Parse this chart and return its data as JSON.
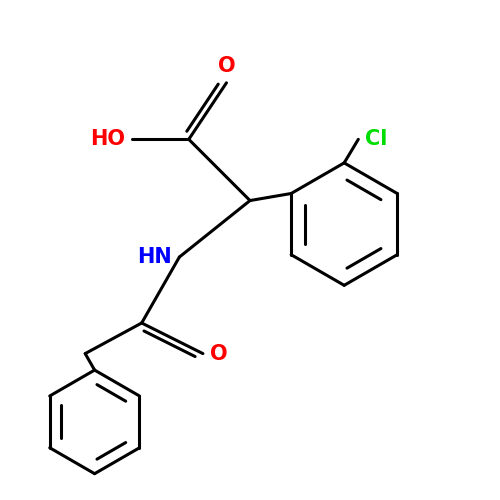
{
  "background_color": "#ffffff",
  "bond_color": "#000000",
  "bond_width": 2.2,
  "colors": {
    "O": "#ff0000",
    "N": "#0000ff",
    "Cl": "#00dd00",
    "C": "#000000"
  },
  "figsize": [
    5.0,
    5.0
  ],
  "dpi": 100
}
